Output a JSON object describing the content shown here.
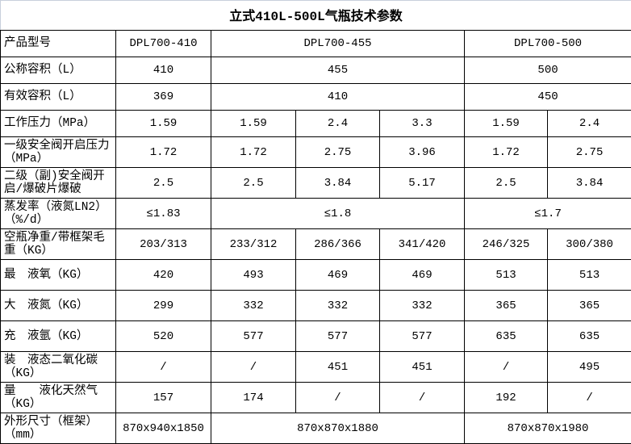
{
  "title": "立式410L-500L气瓶技术参数",
  "rows": [
    {
      "label": "产品型号",
      "cells": [
        "DPL700-410",
        "DPL700-455",
        "DPL700-500"
      ]
    },
    {
      "label": "公称容积（L）",
      "cells": [
        "410",
        "455",
        "500"
      ]
    },
    {
      "label": "有效容积（L）",
      "cells": [
        "369",
        "410",
        "450"
      ]
    },
    {
      "label": "工作压力（MPa）",
      "cells": [
        "1.59",
        "1.59",
        "2.4",
        "3.3",
        "1.59",
        "2.4"
      ]
    },
    {
      "label": "一级安全阀开启压力（MPa）",
      "cells": [
        "1.72",
        "1.72",
        "2.75",
        "3.96",
        "1.72",
        "2.75"
      ]
    },
    {
      "label": "二级（副)安全阀开启/爆破片爆破",
      "cells": [
        "2.5",
        "2.5",
        "3.84",
        "5.17",
        "2.5",
        "3.84"
      ]
    },
    {
      "label": "蒸发率（液氮LN2）（%/d）",
      "cells": [
        "≤1.83",
        "≤1.8",
        "≤1.7"
      ]
    },
    {
      "label": "空瓶净重/带框架毛重（KG）",
      "cells": [
        "203/313",
        "233/312",
        "286/366",
        "341/420",
        "246/325",
        "300/380"
      ]
    },
    {
      "label": "最　液氧（KG）",
      "cells": [
        "420",
        "493",
        "469",
        "469",
        "513",
        "513"
      ]
    },
    {
      "label": "大　液氮（KG）",
      "cells": [
        "299",
        "332",
        "332",
        "332",
        "365",
        "365"
      ]
    },
    {
      "label": "充　液氩（KG）",
      "cells": [
        "520",
        "577",
        "577",
        "577",
        "635",
        "635"
      ]
    },
    {
      "label": "装　液态二氧化碳（KG）",
      "cells": [
        "/",
        "/",
        "451",
        "451",
        "/",
        "495"
      ]
    },
    {
      "label": "量　　液化天然气（KG）",
      "cells": [
        "157",
        "174",
        "/",
        "/",
        "192",
        "/"
      ]
    },
    {
      "label": "外形尺寸（框架）（mm）",
      "cells": [
        "870x940x1850",
        "870x870x1880",
        "870x870x1980"
      ]
    }
  ]
}
